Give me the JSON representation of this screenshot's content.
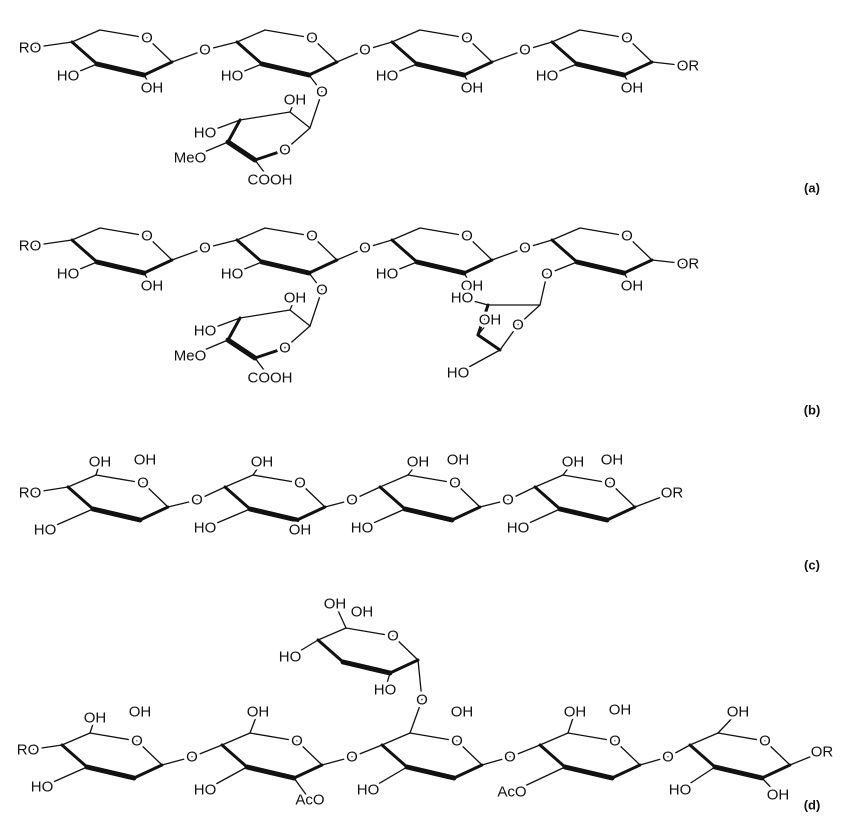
{
  "panels": [
    {
      "label": "(a)",
      "atoms": [
        "RO",
        "HO",
        "OH",
        "O",
        "O",
        "HO",
        "O",
        "O",
        "O",
        "HO",
        "OH",
        "O",
        "O",
        "HO",
        "OH",
        "O",
        "OR",
        "OH",
        "HO",
        "MeO",
        "O",
        "COOH"
      ]
    },
    {
      "label": "(b)",
      "atoms": [
        "RO",
        "HO",
        "OH",
        "O",
        "O",
        "HO",
        "O",
        "O",
        "O",
        "HO",
        "OH",
        "O",
        "O",
        "O",
        "OH",
        "O",
        "OR",
        "OH",
        "HO",
        "MeO",
        "O",
        "COOH",
        "HO",
        "OH",
        "O",
        "HO"
      ]
    },
    {
      "label": "(c)",
      "atoms": [
        "RO",
        "HO",
        "OH",
        "OH",
        "O",
        "O",
        "OH",
        "O",
        "HO",
        "OH",
        "O",
        "OH",
        "OH",
        "O",
        "HO",
        "O",
        "OH",
        "OH",
        "O",
        "HO",
        "OR"
      ]
    },
    {
      "label": "(d)",
      "atoms": [
        "RO",
        "HO",
        "OH",
        "OH",
        "O",
        "O",
        "OH",
        "O",
        "HO",
        "AcO",
        "O",
        "HO",
        "OH",
        "O",
        "O",
        "O",
        "OH",
        "OH",
        "O",
        "AcO",
        "O",
        "OH",
        "O",
        "HO",
        "OH",
        "OR",
        "OH",
        "OH",
        "O",
        "HO",
        "HO"
      ]
    }
  ]
}
